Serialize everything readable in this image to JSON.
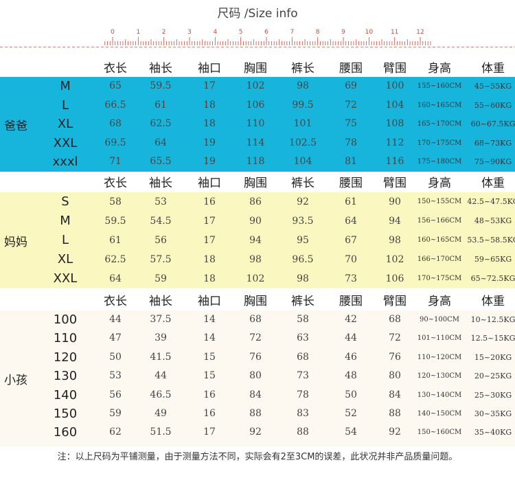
{
  "title": "尺码 /Size info",
  "ruler_labels": [
    "0",
    "1",
    "2",
    "3",
    "4",
    "5",
    "6",
    "7",
    "8",
    "9",
    "10",
    "11",
    "12"
  ],
  "colors": {
    "dad": "#17b4dc",
    "mom": "#fbf7c0",
    "kid": "#fdf8f0",
    "ruler": "#c94a3e"
  },
  "headers": [
    "衣长",
    "袖长",
    "袖口",
    "胸围",
    "裤长",
    "腰围",
    "臂围",
    "身高",
    "体重"
  ],
  "groups": [
    {
      "label": "爸爸",
      "rows": [
        {
          "size": "M",
          "values": [
            "65",
            "59.5",
            "17",
            "102",
            "98",
            "69",
            "100"
          ],
          "height": "155~160CM",
          "weight": "45~55KG"
        },
        {
          "size": "L",
          "values": [
            "66.5",
            "61",
            "18",
            "106",
            "99.5",
            "72",
            "104"
          ],
          "height": "160~165CM",
          "weight": "55~60KG"
        },
        {
          "size": "XL",
          "values": [
            "68",
            "62.5",
            "18",
            "110",
            "101",
            "75",
            "108"
          ],
          "height": "165~170CM",
          "weight": "60~67.5KG"
        },
        {
          "size": "XXL",
          "values": [
            "69.5",
            "64",
            "19",
            "114",
            "102.5",
            "78",
            "112"
          ],
          "height": "170~175CM",
          "weight": "68~73KG"
        },
        {
          "size": "xxxl",
          "values": [
            "71",
            "65.5",
            "19",
            "118",
            "104",
            "81",
            "116"
          ],
          "height": "175~180CM",
          "weight": "75~90KG"
        }
      ]
    },
    {
      "label": "妈妈",
      "rows": [
        {
          "size": "S",
          "values": [
            "58",
            "53",
            "16",
            "86",
            "92",
            "61",
            "90"
          ],
          "height": "150~155CM",
          "weight": "42.5~47.5KG"
        },
        {
          "size": "M",
          "values": [
            "59.5",
            "54.5",
            "17",
            "90",
            "93.5",
            "64",
            "94"
          ],
          "height": "156~166CM",
          "weight": "48~53KG"
        },
        {
          "size": "L",
          "values": [
            "61",
            "56",
            "17",
            "94",
            "95",
            "67",
            "98"
          ],
          "height": "160~165CM",
          "weight": "53.5~58.5KG"
        },
        {
          "size": "XL",
          "values": [
            "62.5",
            "57.5",
            "18",
            "98",
            "96.5",
            "70",
            "102"
          ],
          "height": "166~170CM",
          "weight": "59~65KG"
        },
        {
          "size": "XXL",
          "values": [
            "64",
            "59",
            "18",
            "102",
            "98",
            "73",
            "106"
          ],
          "height": "170~175CM",
          "weight": "65~72.5KG"
        }
      ]
    },
    {
      "label": "小孩",
      "rows": [
        {
          "size": "100",
          "values": [
            "44",
            "37.5",
            "14",
            "68",
            "58",
            "42",
            "68"
          ],
          "height": "90~100CM",
          "weight": "10~12.5KG"
        },
        {
          "size": "110",
          "values": [
            "47",
            "39",
            "14",
            "72",
            "63",
            "44",
            "72"
          ],
          "height": "101~110CM",
          "weight": "12.5~15KG"
        },
        {
          "size": "120",
          "values": [
            "50",
            "41.5",
            "15",
            "76",
            "68",
            "46",
            "76"
          ],
          "height": "110~120CM",
          "weight": "15~20KG"
        },
        {
          "size": "130",
          "values": [
            "53",
            "44",
            "15",
            "80",
            "73",
            "48",
            "80"
          ],
          "height": "120~130CM",
          "weight": "20~25KG"
        },
        {
          "size": "140",
          "values": [
            "56",
            "46.5",
            "16",
            "84",
            "78",
            "50",
            "84"
          ],
          "height": "130~140CM",
          "weight": "25~30KG"
        },
        {
          "size": "150",
          "values": [
            "59",
            "49",
            "16",
            "88",
            "83",
            "52",
            "88"
          ],
          "height": "140~150CM",
          "weight": "30~35KG"
        },
        {
          "size": "160",
          "values": [
            "62",
            "51.5",
            "17",
            "92",
            "88",
            "54",
            "92"
          ],
          "height": "150~160CM",
          "weight": "35~40KG"
        }
      ]
    }
  ],
  "note": "注：以上尺码为平铺测量，由于测量方法不同，实际会有2至3CM的误差，此状况并非产品质量问题。"
}
